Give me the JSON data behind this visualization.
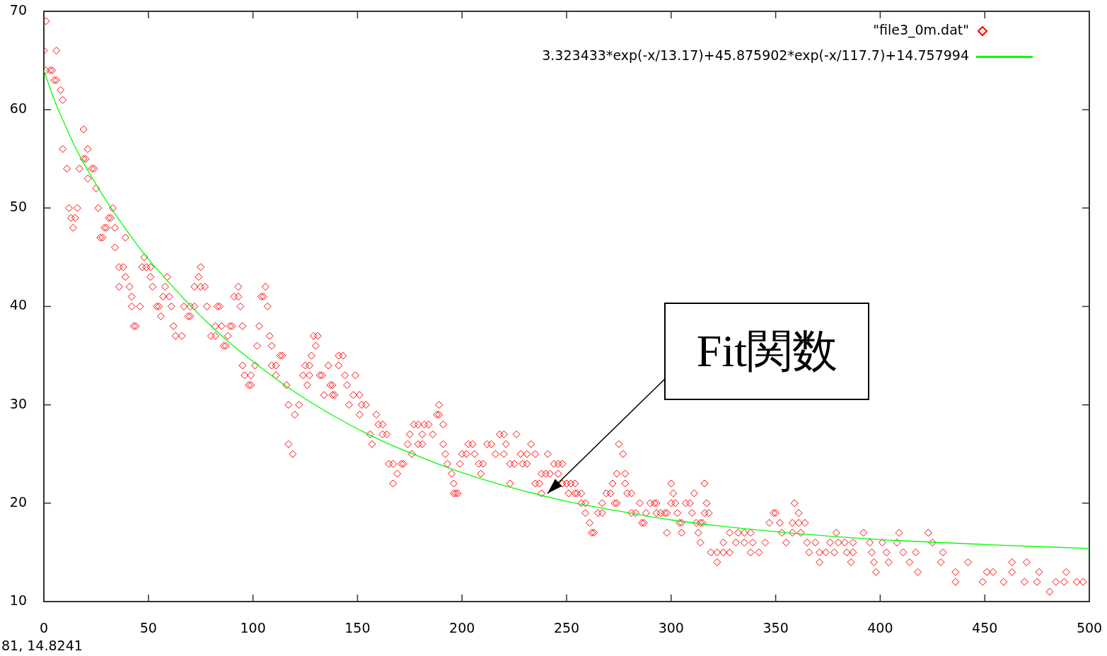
{
  "chart_data": {
    "type": "scatter",
    "marker": "diamond",
    "legend": "top right",
    "grid": false,
    "xlim": [
      0,
      500
    ],
    "xticks": [
      0,
      50,
      100,
      150,
      200,
      250,
      300,
      350,
      400,
      450,
      500
    ],
    "ylim": [
      10,
      70
    ],
    "yticks": [
      10,
      20,
      30,
      40,
      50,
      60,
      70
    ],
    "series": [
      {
        "name": "\"file3_0m.dat\"",
        "type": "scatter",
        "color": "#ff0000",
        "x": [
          0,
          1,
          1,
          3,
          4,
          5,
          6,
          6,
          8,
          9,
          9,
          11,
          12,
          13,
          14,
          15,
          16,
          17,
          19,
          19,
          20,
          21,
          21,
          23,
          24,
          25,
          26,
          27,
          28,
          29,
          30,
          31,
          32,
          33,
          34,
          34,
          36,
          36,
          38,
          39,
          39,
          41,
          42,
          42,
          43,
          44,
          46,
          47,
          48,
          49,
          51,
          51,
          52,
          54,
          55,
          56,
          57,
          58,
          59,
          60,
          61,
          62,
          63,
          66,
          67,
          69,
          70,
          70,
          72,
          72,
          74,
          75,
          75,
          77,
          78,
          80,
          82,
          82,
          83,
          84,
          85,
          86,
          87,
          88,
          89,
          90,
          91,
          93,
          93,
          94,
          95,
          95,
          96,
          98,
          99,
          99,
          101,
          102,
          103,
          104,
          105,
          106,
          107,
          108,
          109,
          109,
          111,
          111,
          113,
          114,
          116,
          117,
          117,
          119,
          120,
          122,
          124,
          125,
          126,
          127,
          127,
          128,
          129,
          130,
          131,
          132,
          133,
          134,
          136,
          137,
          138,
          138,
          139,
          141,
          141,
          143,
          144,
          145,
          146,
          148,
          149,
          151,
          151,
          152,
          154,
          156,
          157,
          159,
          160,
          162,
          162,
          164,
          165,
          167,
          167,
          169,
          171,
          172,
          174,
          175,
          176,
          177,
          179,
          179,
          181,
          181,
          182,
          184,
          186,
          188,
          189,
          189,
          191,
          191,
          192,
          193,
          195,
          196,
          196,
          197,
          198,
          199,
          200,
          202,
          203,
          205,
          206,
          208,
          209,
          210,
          212,
          214,
          216,
          218,
          220,
          220,
          221,
          223,
          223,
          225,
          226,
          228,
          229,
          231,
          231,
          233,
          235,
          235,
          237,
          238,
          238,
          240,
          241,
          242,
          244,
          246,
          246,
          248,
          248,
          250,
          251,
          252,
          254,
          254,
          255,
          257,
          257,
          259,
          259,
          261,
          262,
          263,
          265,
          267,
          267,
          269,
          271,
          272,
          273,
          274,
          274,
          275,
          277,
          278,
          278,
          279,
          281,
          281,
          283,
          285,
          286,
          287,
          288,
          290,
          292,
          293,
          293,
          295,
          297,
          298,
          298,
          300,
          300,
          301,
          302,
          303,
          304,
          305,
          305,
          307,
          309,
          310,
          311,
          312,
          313,
          314,
          314,
          315,
          316,
          316,
          317,
          318,
          319,
          322,
          322,
          325,
          325,
          328,
          328,
          331,
          332,
          335,
          335,
          338,
          338,
          339,
          342,
          345,
          347,
          349,
          350,
          352,
          353,
          355,
          358,
          358,
          359,
          361,
          361,
          362,
          364,
          365,
          366,
          369,
          371,
          371,
          374,
          376,
          378,
          379,
          380,
          383,
          384,
          386,
          387,
          387,
          392,
          395,
          396,
          397,
          398,
          401,
          403,
          404,
          408,
          409,
          411,
          414,
          417,
          418,
          423,
          425,
          429,
          430,
          436,
          436,
          442,
          449,
          451,
          454,
          459,
          463,
          463,
          469,
          470,
          475,
          476,
          481,
          484,
          488,
          489,
          494,
          497
        ],
        "values": [
          66,
          69,
          64,
          64,
          64,
          63,
          66,
          63,
          62,
          61,
          56,
          54,
          50,
          49,
          48,
          49,
          50,
          54,
          58,
          55,
          55,
          56,
          53,
          54,
          54,
          52,
          50,
          47,
          47,
          48,
          48,
          49,
          49,
          50,
          48,
          46,
          44,
          42,
          44,
          43,
          47,
          42,
          41,
          40,
          38,
          38,
          40,
          44,
          45,
          44,
          44,
          43,
          42,
          40,
          40,
          39,
          41,
          42,
          43,
          41,
          40,
          38,
          37,
          37,
          40,
          39,
          39,
          40,
          40,
          42,
          43,
          44,
          42,
          42,
          40,
          37,
          37,
          38,
          40,
          40,
          38,
          36,
          36,
          37,
          38,
          38,
          41,
          41,
          42,
          40,
          38,
          34,
          33,
          32,
          32,
          33,
          34,
          36,
          38,
          41,
          41,
          42,
          40,
          37,
          36,
          34,
          34,
          33,
          35,
          35,
          32,
          30,
          26,
          25,
          29,
          30,
          33,
          34,
          32,
          34,
          33,
          35,
          37,
          36,
          37,
          33,
          33,
          31,
          34,
          32,
          32,
          31,
          31,
          34,
          35,
          35,
          33,
          32,
          30,
          31,
          33,
          31,
          29,
          30,
          30,
          27,
          26,
          29,
          28,
          28,
          27,
          27,
          24,
          24,
          22,
          23,
          24,
          24,
          26,
          27,
          25,
          28,
          28,
          26,
          26,
          27,
          28,
          28,
          27,
          29,
          29,
          30,
          28,
          26,
          25,
          24,
          23,
          21,
          22,
          21,
          21,
          24,
          25,
          25,
          26,
          26,
          25,
          24,
          23,
          24,
          26,
          26,
          25,
          27,
          27,
          25,
          26,
          24,
          22,
          24,
          27,
          25,
          24,
          24,
          25,
          26,
          25,
          22,
          22,
          21,
          23,
          23,
          25,
          23,
          24,
          24,
          23,
          24,
          22,
          22,
          21,
          22,
          21,
          22,
          21,
          21,
          20,
          20,
          19,
          18,
          17,
          17,
          19,
          19,
          20,
          21,
          21,
          22,
          20,
          20,
          23,
          26,
          25,
          23,
          22,
          21,
          21,
          19,
          19,
          20,
          18,
          18,
          19,
          20,
          20,
          20,
          19,
          19,
          19,
          17,
          19,
          22,
          20,
          21,
          20,
          19,
          18,
          18,
          17,
          20,
          20,
          19,
          21,
          18,
          17,
          18,
          16,
          18,
          22,
          19,
          20,
          19,
          15,
          15,
          14,
          16,
          15,
          15,
          17,
          16,
          17,
          17,
          16,
          17,
          15,
          16,
          15,
          16,
          18,
          19,
          19,
          18,
          17,
          16,
          18,
          17,
          20,
          19,
          18,
          17,
          18,
          16,
          15,
          16,
          15,
          14,
          15,
          16,
          15,
          17,
          16,
          16,
          15,
          14,
          16,
          15,
          17,
          16,
          15,
          14,
          13,
          16,
          15,
          14,
          16,
          17,
          15,
          14,
          15,
          13,
          17,
          16,
          14,
          15,
          13,
          12,
          14,
          12,
          13,
          13,
          12,
          14,
          13,
          12,
          14,
          12,
          13,
          11,
          12,
          12,
          13,
          12,
          12
        ]
      },
      {
        "name": "3.323433*exp(-x/13.17)+45.875902*exp(-x/117.7)+14.757994",
        "type": "line",
        "marker": "none",
        "line_style": "solid",
        "color": "#00ff00",
        "x": [
          0,
          5,
          10,
          15,
          20,
          25,
          30,
          40,
          50,
          60,
          70,
          80,
          90,
          100,
          120,
          140,
          160,
          180,
          200,
          225,
          250,
          275,
          300,
          350,
          400,
          450,
          500
        ],
        "values": [
          64,
          61,
          58.5,
          56.2,
          54.2,
          52.4,
          50.7,
          47.6,
          44.8,
          42.4,
          40.1,
          38,
          36.1,
          34.4,
          31.3,
          28.7,
          26.5,
          24.7,
          23.1,
          21.5,
          20.2,
          19.2,
          18.3,
          17.1,
          16.3,
          15.8,
          15.4
        ]
      }
    ],
    "annotations": [
      {
        "text": "Fit関数",
        "x": 241,
        "y": 21
      },
      "81, 14.8241"
    ]
  }
}
